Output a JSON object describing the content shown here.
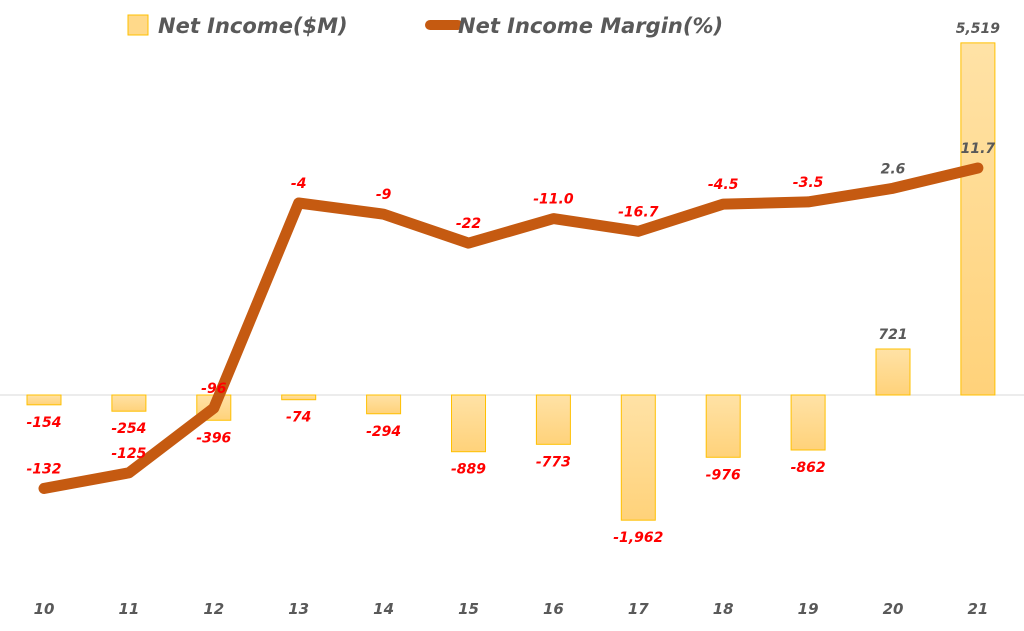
{
  "chart_data": {
    "type": "bar+line",
    "categories": [
      "10",
      "11",
      "12",
      "13",
      "14",
      "15",
      "16",
      "17",
      "18",
      "19",
      "20",
      "21"
    ],
    "series": [
      {
        "name": "Net Income($M)",
        "type": "bar",
        "axis": "primary",
        "values": [
          -154,
          -254,
          -396,
          -74,
          -294,
          -889,
          -773,
          -1962,
          -976,
          -862,
          721,
          5519
        ],
        "labels": [
          "-154",
          "-254",
          "-396",
          "-74",
          "-294",
          "-889",
          "-773",
          "-1,962",
          "-976",
          "-862",
          "721",
          "5,519"
        ],
        "color": "#FFD98A",
        "border": "#FFC000"
      },
      {
        "name": "Net Income Margin(%)",
        "type": "line",
        "axis": "secondary",
        "values": [
          -132,
          -125,
          -96,
          -4,
          -9,
          -22,
          -11.0,
          -16.7,
          -4.5,
          -3.5,
          2.6,
          11.7
        ],
        "labels": [
          "-132",
          "-125",
          "-96",
          "-4",
          "-9",
          "-22",
          "-11.0",
          "-16.7",
          "-4.5",
          "-3.5",
          "2.6",
          "11.7"
        ],
        "color": "#C55A11"
      }
    ],
    "negative_label_color": "#FF0000",
    "positive_label_color": "#595959",
    "legend": "top",
    "grid": false,
    "axes_visible": false
  }
}
